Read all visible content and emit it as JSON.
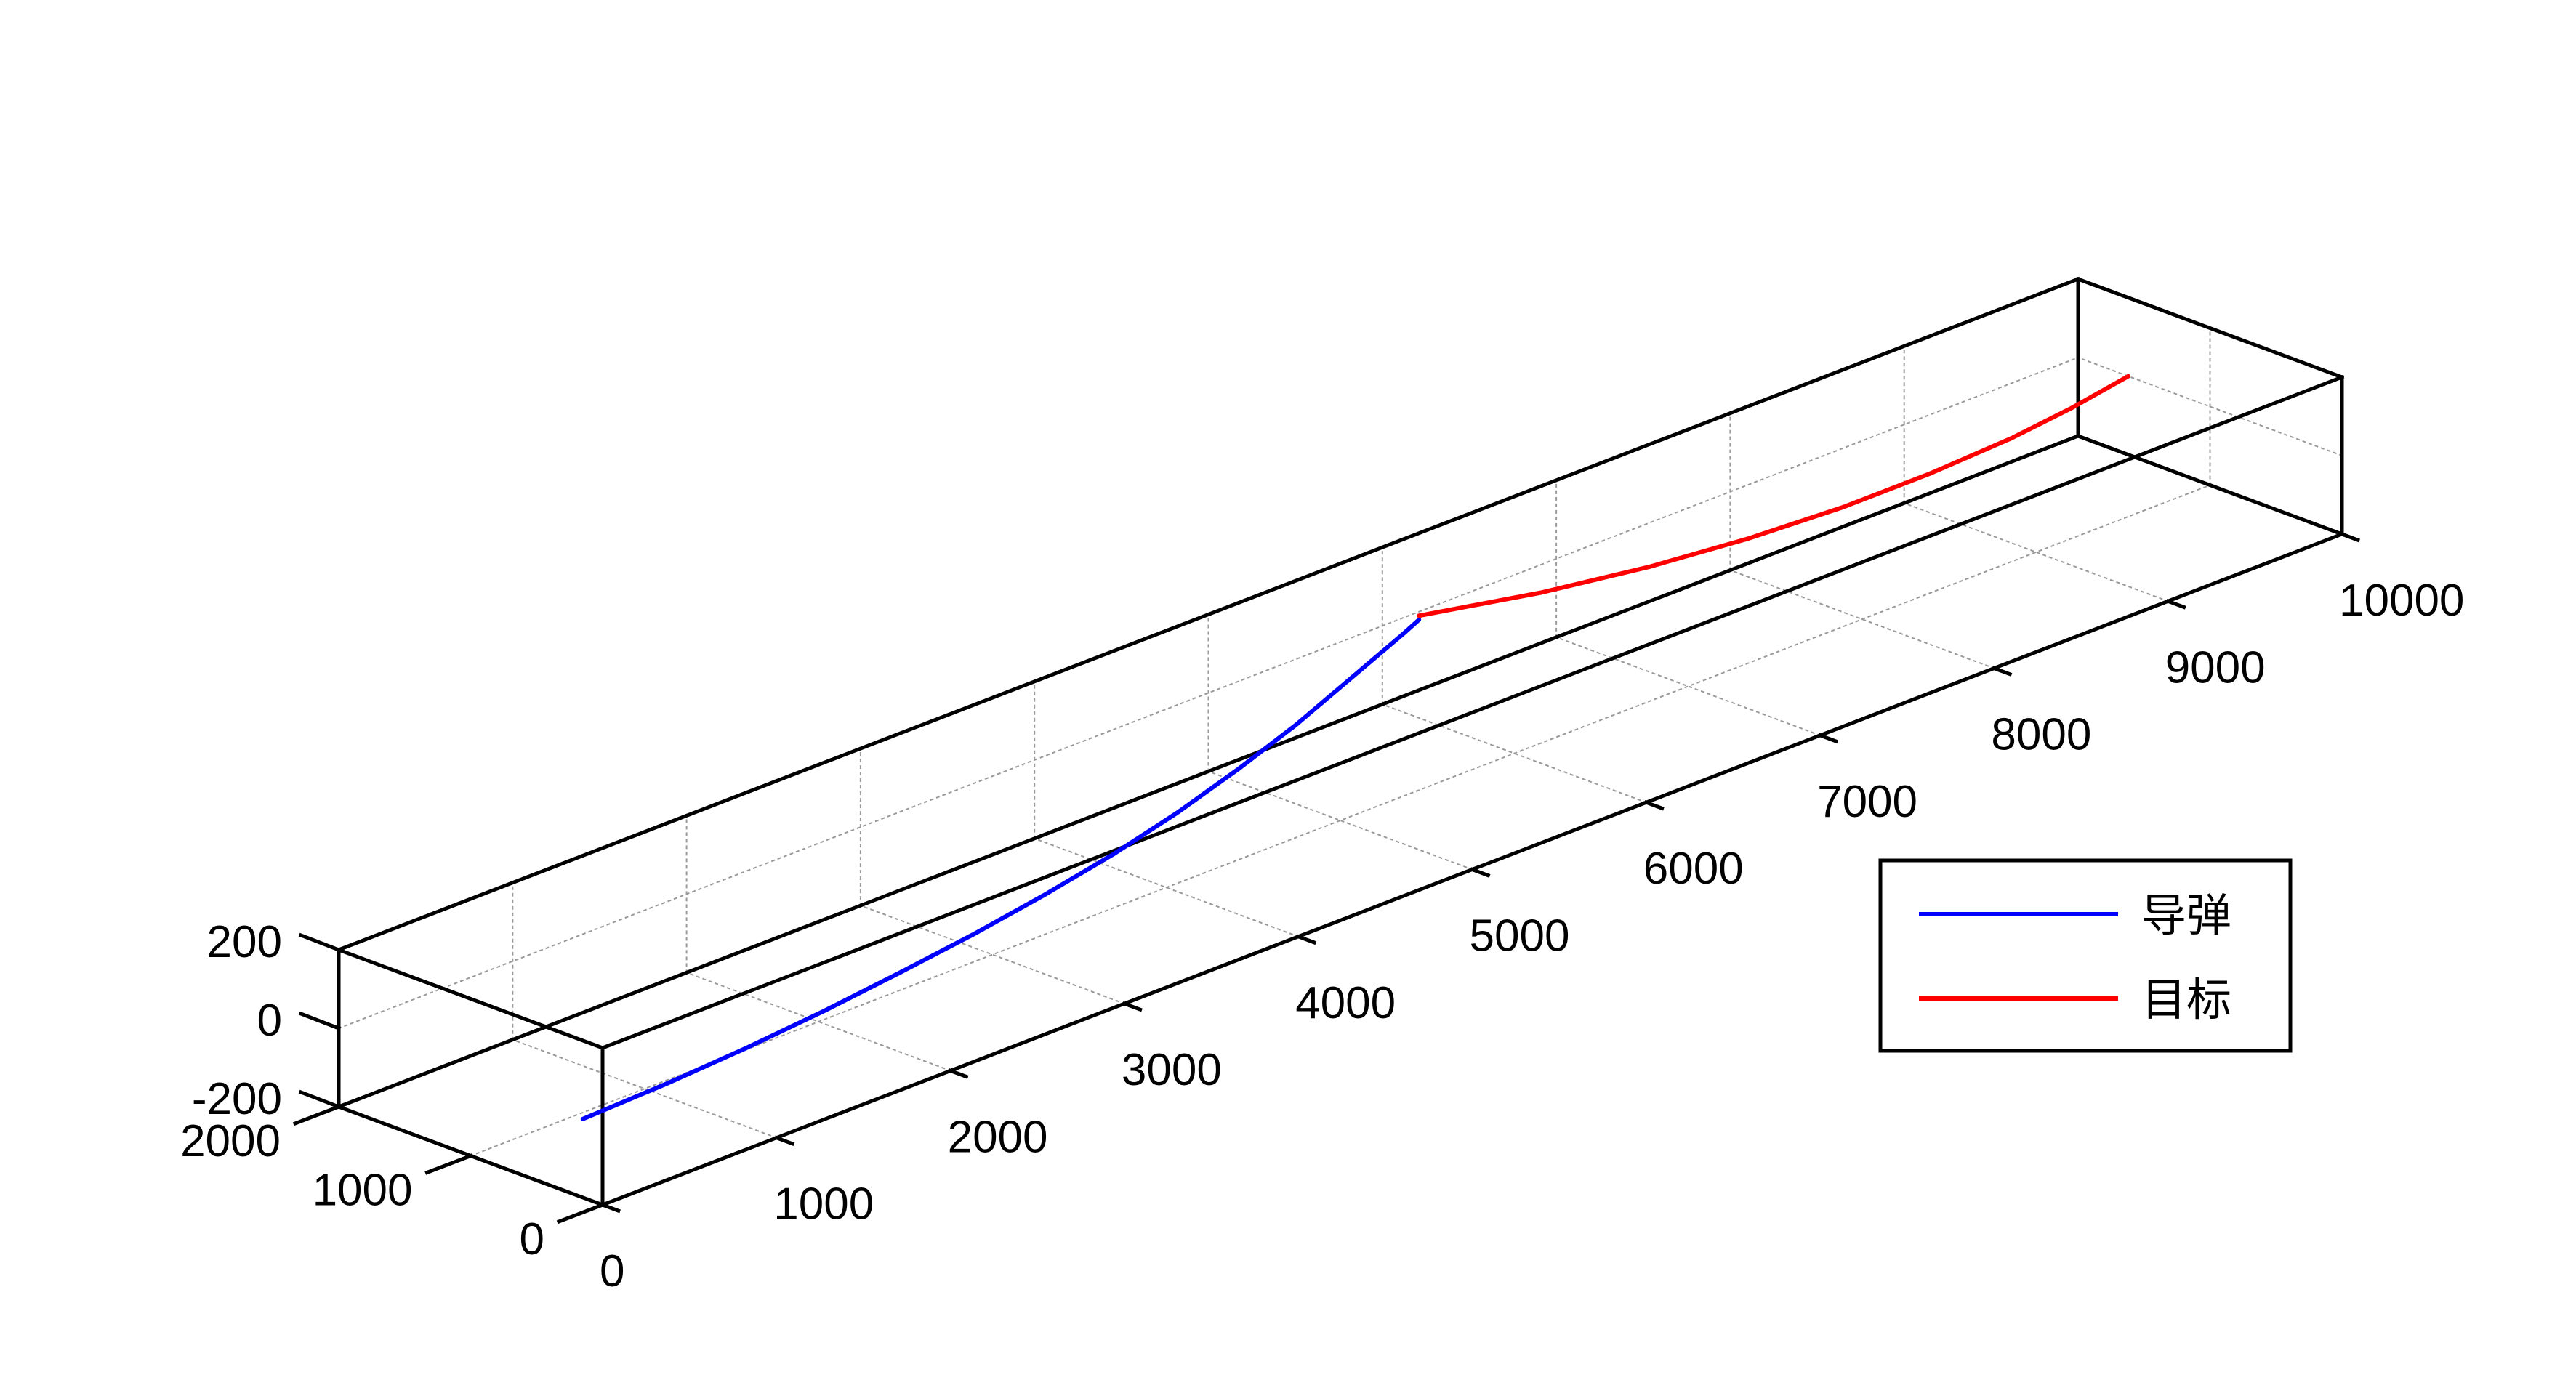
{
  "chart_data": {
    "type": "line3d",
    "title": "",
    "xlabel": "",
    "ylabel": "",
    "zlabel": "",
    "xlim": [
      0,
      10000
    ],
    "ylim": [
      0,
      2000
    ],
    "zlim": [
      -200,
      200
    ],
    "grid": true,
    "box": true,
    "x_ticks": [
      0,
      1000,
      2000,
      3000,
      4000,
      5000,
      6000,
      7000,
      8000,
      9000,
      10000
    ],
    "x_tick_labels": [
      "0",
      "1000",
      "2000",
      "3000",
      "4000",
      "5000",
      "6000",
      "7000",
      "8000",
      "9000",
      "10000"
    ],
    "y_ticks": [
      0,
      1000,
      2000
    ],
    "y_tick_labels": [
      "0",
      "1000",
      "2000"
    ],
    "z_ticks": [
      -200,
      0,
      200
    ],
    "z_tick_labels": [
      "-200",
      "0",
      "200"
    ],
    "legend": {
      "placement": "lower-right",
      "entries": [
        "导弹",
        "目标"
      ]
    },
    "series": [
      {
        "name": "导弹",
        "color": "#0000ff",
        "points": [
          [
            0,
            150,
            0
          ],
          [
            500,
            180,
            0
          ],
          [
            1000,
            230,
            0
          ],
          [
            1500,
            300,
            0
          ],
          [
            2000,
            390,
            0
          ],
          [
            2500,
            490,
            0
          ],
          [
            3000,
            610,
            0
          ],
          [
            3500,
            750,
            0
          ],
          [
            4000,
            920,
            0
          ],
          [
            4500,
            1120,
            0
          ],
          [
            5000,
            1340,
            0
          ],
          [
            5500,
            1590,
            0
          ],
          [
            6000,
            1840,
            0
          ],
          [
            6150,
            1920,
            0
          ]
        ]
      },
      {
        "name": "目标",
        "color": "#ff0000",
        "points": [
          [
            6180,
            1960,
            0
          ],
          [
            6700,
            1720,
            0
          ],
          [
            7200,
            1560,
            0
          ],
          [
            7700,
            1460,
            0
          ],
          [
            8200,
            1410,
            0
          ],
          [
            8700,
            1410,
            0
          ],
          [
            9200,
            1450,
            0
          ],
          [
            9600,
            1520,
            0
          ],
          [
            10000,
            1620,
            0
          ]
        ]
      }
    ]
  }
}
